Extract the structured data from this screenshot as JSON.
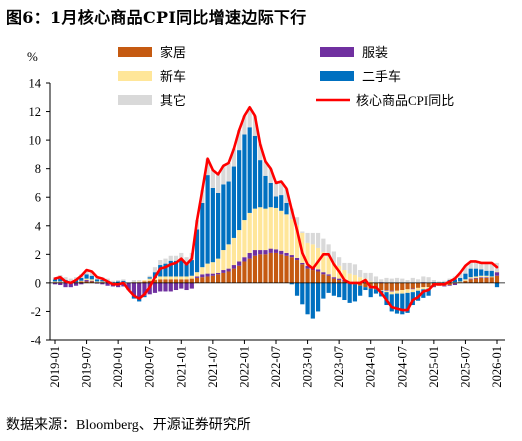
{
  "title": "图6：1月核心商品CPI同比增速边际下行",
  "source": "数据来源：Bloomberg、开源证券研究所",
  "chart_data": {
    "type": "bar",
    "stacked": true,
    "yunit": "%",
    "ylim": [
      -4,
      14
    ],
    "yticks": [
      14,
      12,
      10,
      8,
      6,
      4,
      2,
      0,
      -2,
      -4
    ],
    "xticks": [
      "2019-01",
      "2019-07",
      "2020-01",
      "2020-07",
      "2021-01",
      "2021-07",
      "2022-01",
      "2022-07",
      "2023-01",
      "2023-07",
      "2024-01",
      "2024-07",
      "2025-01",
      "2025-07",
      "2026-01"
    ],
    "grid": false,
    "legend": "top",
    "x": [
      "2019-01",
      "2019-02",
      "2019-03",
      "2019-04",
      "2019-05",
      "2019-06",
      "2019-07",
      "2019-08",
      "2019-09",
      "2019-10",
      "2019-11",
      "2019-12",
      "2020-01",
      "2020-02",
      "2020-03",
      "2020-04",
      "2020-05",
      "2020-06",
      "2020-07",
      "2020-08",
      "2020-09",
      "2020-10",
      "2020-11",
      "2020-12",
      "2021-01",
      "2021-02",
      "2021-03",
      "2021-04",
      "2021-05",
      "2021-06",
      "2021-07",
      "2021-08",
      "2021-09",
      "2021-10",
      "2021-11",
      "2021-12",
      "2022-01",
      "2022-02",
      "2022-03",
      "2022-04",
      "2022-05",
      "2022-06",
      "2022-07",
      "2022-08",
      "2022-09",
      "2022-10",
      "2022-11",
      "2022-12",
      "2023-01",
      "2023-02",
      "2023-03",
      "2023-04",
      "2023-05",
      "2023-06",
      "2023-07",
      "2023-08",
      "2023-09",
      "2023-10",
      "2023-11",
      "2023-12",
      "2024-01",
      "2024-02",
      "2024-03",
      "2024-04",
      "2024-05",
      "2024-06",
      "2024-07",
      "2024-08",
      "2024-09",
      "2024-10",
      "2024-11",
      "2024-12",
      "2025-01",
      "2025-02",
      "2025-03",
      "2025-04",
      "2025-05",
      "2025-06",
      "2025-07",
      "2025-08",
      "2025-09",
      "2025-10",
      "2025-11",
      "2025-12",
      "2026-01"
    ],
    "series": [
      {
        "name": "家居",
        "type": "bar",
        "color": "#C55A11",
        "values": [
          0.05,
          0.05,
          0.0,
          0.0,
          0.05,
          0.1,
          0.1,
          0.1,
          0.05,
          0.05,
          0.0,
          0.0,
          0.0,
          0.0,
          0.0,
          0.05,
          0.05,
          0.1,
          0.15,
          0.2,
          0.25,
          0.25,
          0.25,
          0.25,
          0.25,
          0.25,
          0.3,
          0.35,
          0.4,
          0.45,
          0.5,
          0.6,
          0.7,
          0.8,
          1.0,
          1.2,
          1.5,
          1.7,
          1.9,
          2.0,
          2.0,
          2.1,
          2.1,
          2.0,
          1.9,
          1.8,
          1.6,
          1.3,
          1.0,
          0.9,
          0.8,
          0.6,
          0.5,
          0.3,
          0.2,
          0.1,
          0.0,
          -0.1,
          -0.2,
          -0.3,
          -0.4,
          -0.45,
          -0.5,
          -0.5,
          -0.55,
          -0.55,
          -0.5,
          -0.45,
          -0.4,
          -0.35,
          -0.3,
          -0.3,
          -0.25,
          -0.2,
          -0.2,
          -0.15,
          -0.05,
          0.05,
          0.15,
          0.25,
          0.3,
          0.35,
          0.35,
          0.4,
          0.5
        ]
      },
      {
        "name": "服装",
        "type": "bar",
        "color": "#7030A0",
        "values": [
          -0.1,
          -0.15,
          -0.3,
          -0.3,
          -0.2,
          -0.1,
          0.1,
          0.05,
          -0.05,
          -0.1,
          -0.2,
          -0.25,
          -0.3,
          -0.25,
          -0.5,
          -0.9,
          -1.0,
          -0.9,
          -0.8,
          -0.7,
          -0.6,
          -0.6,
          -0.6,
          -0.5,
          -0.4,
          -0.5,
          -0.4,
          0.1,
          0.2,
          0.2,
          0.15,
          0.1,
          0.2,
          0.2,
          0.25,
          0.3,
          0.3,
          0.4,
          0.4,
          0.3,
          0.3,
          0.3,
          0.25,
          0.25,
          0.2,
          0.15,
          0.15,
          0.1,
          0.2,
          0.2,
          0.15,
          0.15,
          0.1,
          0.1,
          0.1,
          0.1,
          0.05,
          0.05,
          0.05,
          0.05,
          0.0,
          0.0,
          0.05,
          -0.05,
          -0.05,
          0.0,
          0.0,
          0.0,
          -0.05,
          0.0,
          0.05,
          0.0,
          -0.05,
          0.0,
          -0.05,
          -0.05,
          -0.1,
          0.0,
          0.0,
          0.05,
          0.05,
          0.05,
          0.05,
          0.0,
          0.25
        ]
      },
      {
        "name": "新车",
        "type": "bar",
        "color": "#FFE699",
        "values": [
          0.05,
          0.05,
          0.05,
          0.0,
          0.0,
          0.05,
          0.1,
          0.1,
          0.05,
          0.05,
          0.05,
          0.0,
          0.0,
          0.05,
          0.0,
          0.0,
          0.05,
          0.1,
          0.15,
          0.15,
          0.2,
          0.2,
          0.2,
          0.2,
          0.2,
          0.2,
          0.2,
          0.3,
          0.5,
          0.7,
          0.8,
          1.0,
          1.4,
          1.7,
          1.9,
          2.2,
          2.6,
          2.8,
          2.9,
          3.0,
          2.9,
          2.9,
          2.9,
          2.8,
          2.7,
          2.5,
          2.3,
          2.1,
          1.6,
          1.6,
          1.5,
          1.4,
          1.2,
          1.0,
          0.9,
          0.7,
          0.6,
          0.5,
          0.35,
          0.25,
          0.1,
          0.0,
          -0.05,
          -0.1,
          -0.2,
          -0.2,
          -0.25,
          -0.25,
          -0.2,
          -0.2,
          -0.15,
          -0.1,
          0.0,
          0.0,
          0.0,
          0.05,
          0.05,
          0.05,
          0.1,
          0.1,
          0.1,
          0.1,
          0.1,
          0.05,
          0.05
        ]
      },
      {
        "name": "二手车",
        "type": "bar",
        "color": "#0070C0",
        "values": [
          0.15,
          0.2,
          0.15,
          0.1,
          0.15,
          0.2,
          0.3,
          0.25,
          0.15,
          0.1,
          0.1,
          0.05,
          0.1,
          0.1,
          0.0,
          -0.2,
          -0.3,
          -0.1,
          0.1,
          0.4,
          0.8,
          0.9,
          1.1,
          1.1,
          1.2,
          0.9,
          1.1,
          3.0,
          4.5,
          6.2,
          5.2,
          4.6,
          4.6,
          4.4,
          5.0,
          5.6,
          6.0,
          6.0,
          5.1,
          3.3,
          2.3,
          1.7,
          0.8,
          1.1,
          0.8,
          -0.1,
          -0.9,
          -1.5,
          -2.2,
          -2.5,
          -2.0,
          -1.1,
          -0.7,
          -0.9,
          -1.0,
          -1.2,
          -1.4,
          -1.2,
          -0.7,
          -0.2,
          -0.6,
          -0.3,
          -0.4,
          -0.9,
          -1.2,
          -1.4,
          -1.45,
          -1.4,
          -0.9,
          -0.7,
          -0.6,
          -0.5,
          0.05,
          0.0,
          0.05,
          0.15,
          0.2,
          0.25,
          0.4,
          0.6,
          0.55,
          0.45,
          0.35,
          0.4,
          -0.3
        ]
      },
      {
        "name": "其它",
        "type": "bar",
        "color": "#D9D9D9",
        "values": [
          0.15,
          0.25,
          0.2,
          0.2,
          0.2,
          0.25,
          0.3,
          0.3,
          0.2,
          0.2,
          0.15,
          0.1,
          0.1,
          0.1,
          0.0,
          0.15,
          0.1,
          0.0,
          0.1,
          0.35,
          0.35,
          0.35,
          0.35,
          0.35,
          0.45,
          0.45,
          0.5,
          0.65,
          0.9,
          1.15,
          1.25,
          1.3,
          1.3,
          1.3,
          1.25,
          1.4,
          1.3,
          1.4,
          1.4,
          1.1,
          1.0,
          1.0,
          0.95,
          0.95,
          1.0,
          0.75,
          0.55,
          0.1,
          0.7,
          0.8,
          1.05,
          0.95,
          0.9,
          0.8,
          0.6,
          0.5,
          0.75,
          0.75,
          0.5,
          0.4,
          0.6,
          0.45,
          0.2,
          0.35,
          0.3,
          0.35,
          0.3,
          0.2,
          0.35,
          0.25,
          0.4,
          0.4,
          0.15,
          0.1,
          0.1,
          0.1,
          0.2,
          0.35,
          0.55,
          0.5,
          0.5,
          0.45,
          0.55,
          0.55,
          0.6
        ]
      },
      {
        "name": "核心商品CPI同比",
        "type": "line",
        "color": "#FF0000",
        "values": [
          0.3,
          0.4,
          0.1,
          0.0,
          0.2,
          0.5,
          0.9,
          0.8,
          0.4,
          0.3,
          0.1,
          -0.1,
          -0.1,
          0.0,
          -0.5,
          -0.9,
          -1.1,
          -0.8,
          -0.3,
          0.4,
          1.0,
          1.1,
          1.3,
          1.4,
          1.7,
          1.3,
          1.7,
          4.4,
          6.5,
          8.7,
          7.9,
          7.6,
          8.2,
          8.4,
          9.4,
          10.7,
          11.7,
          12.3,
          11.7,
          9.7,
          8.5,
          8.0,
          7.0,
          7.1,
          6.6,
          5.1,
          3.7,
          2.1,
          1.3,
          1.0,
          1.5,
          2.0,
          2.0,
          1.3,
          0.8,
          0.2,
          0.0,
          0.0,
          0.0,
          0.2,
          -0.3,
          -0.3,
          -0.7,
          -1.2,
          -1.7,
          -1.8,
          -1.9,
          -1.9,
          -1.2,
          -1.0,
          -0.6,
          -0.5,
          -0.1,
          -0.1,
          -0.1,
          0.1,
          0.3,
          0.7,
          1.2,
          1.5,
          1.5,
          1.4,
          1.4,
          1.4,
          1.1
        ]
      }
    ]
  }
}
